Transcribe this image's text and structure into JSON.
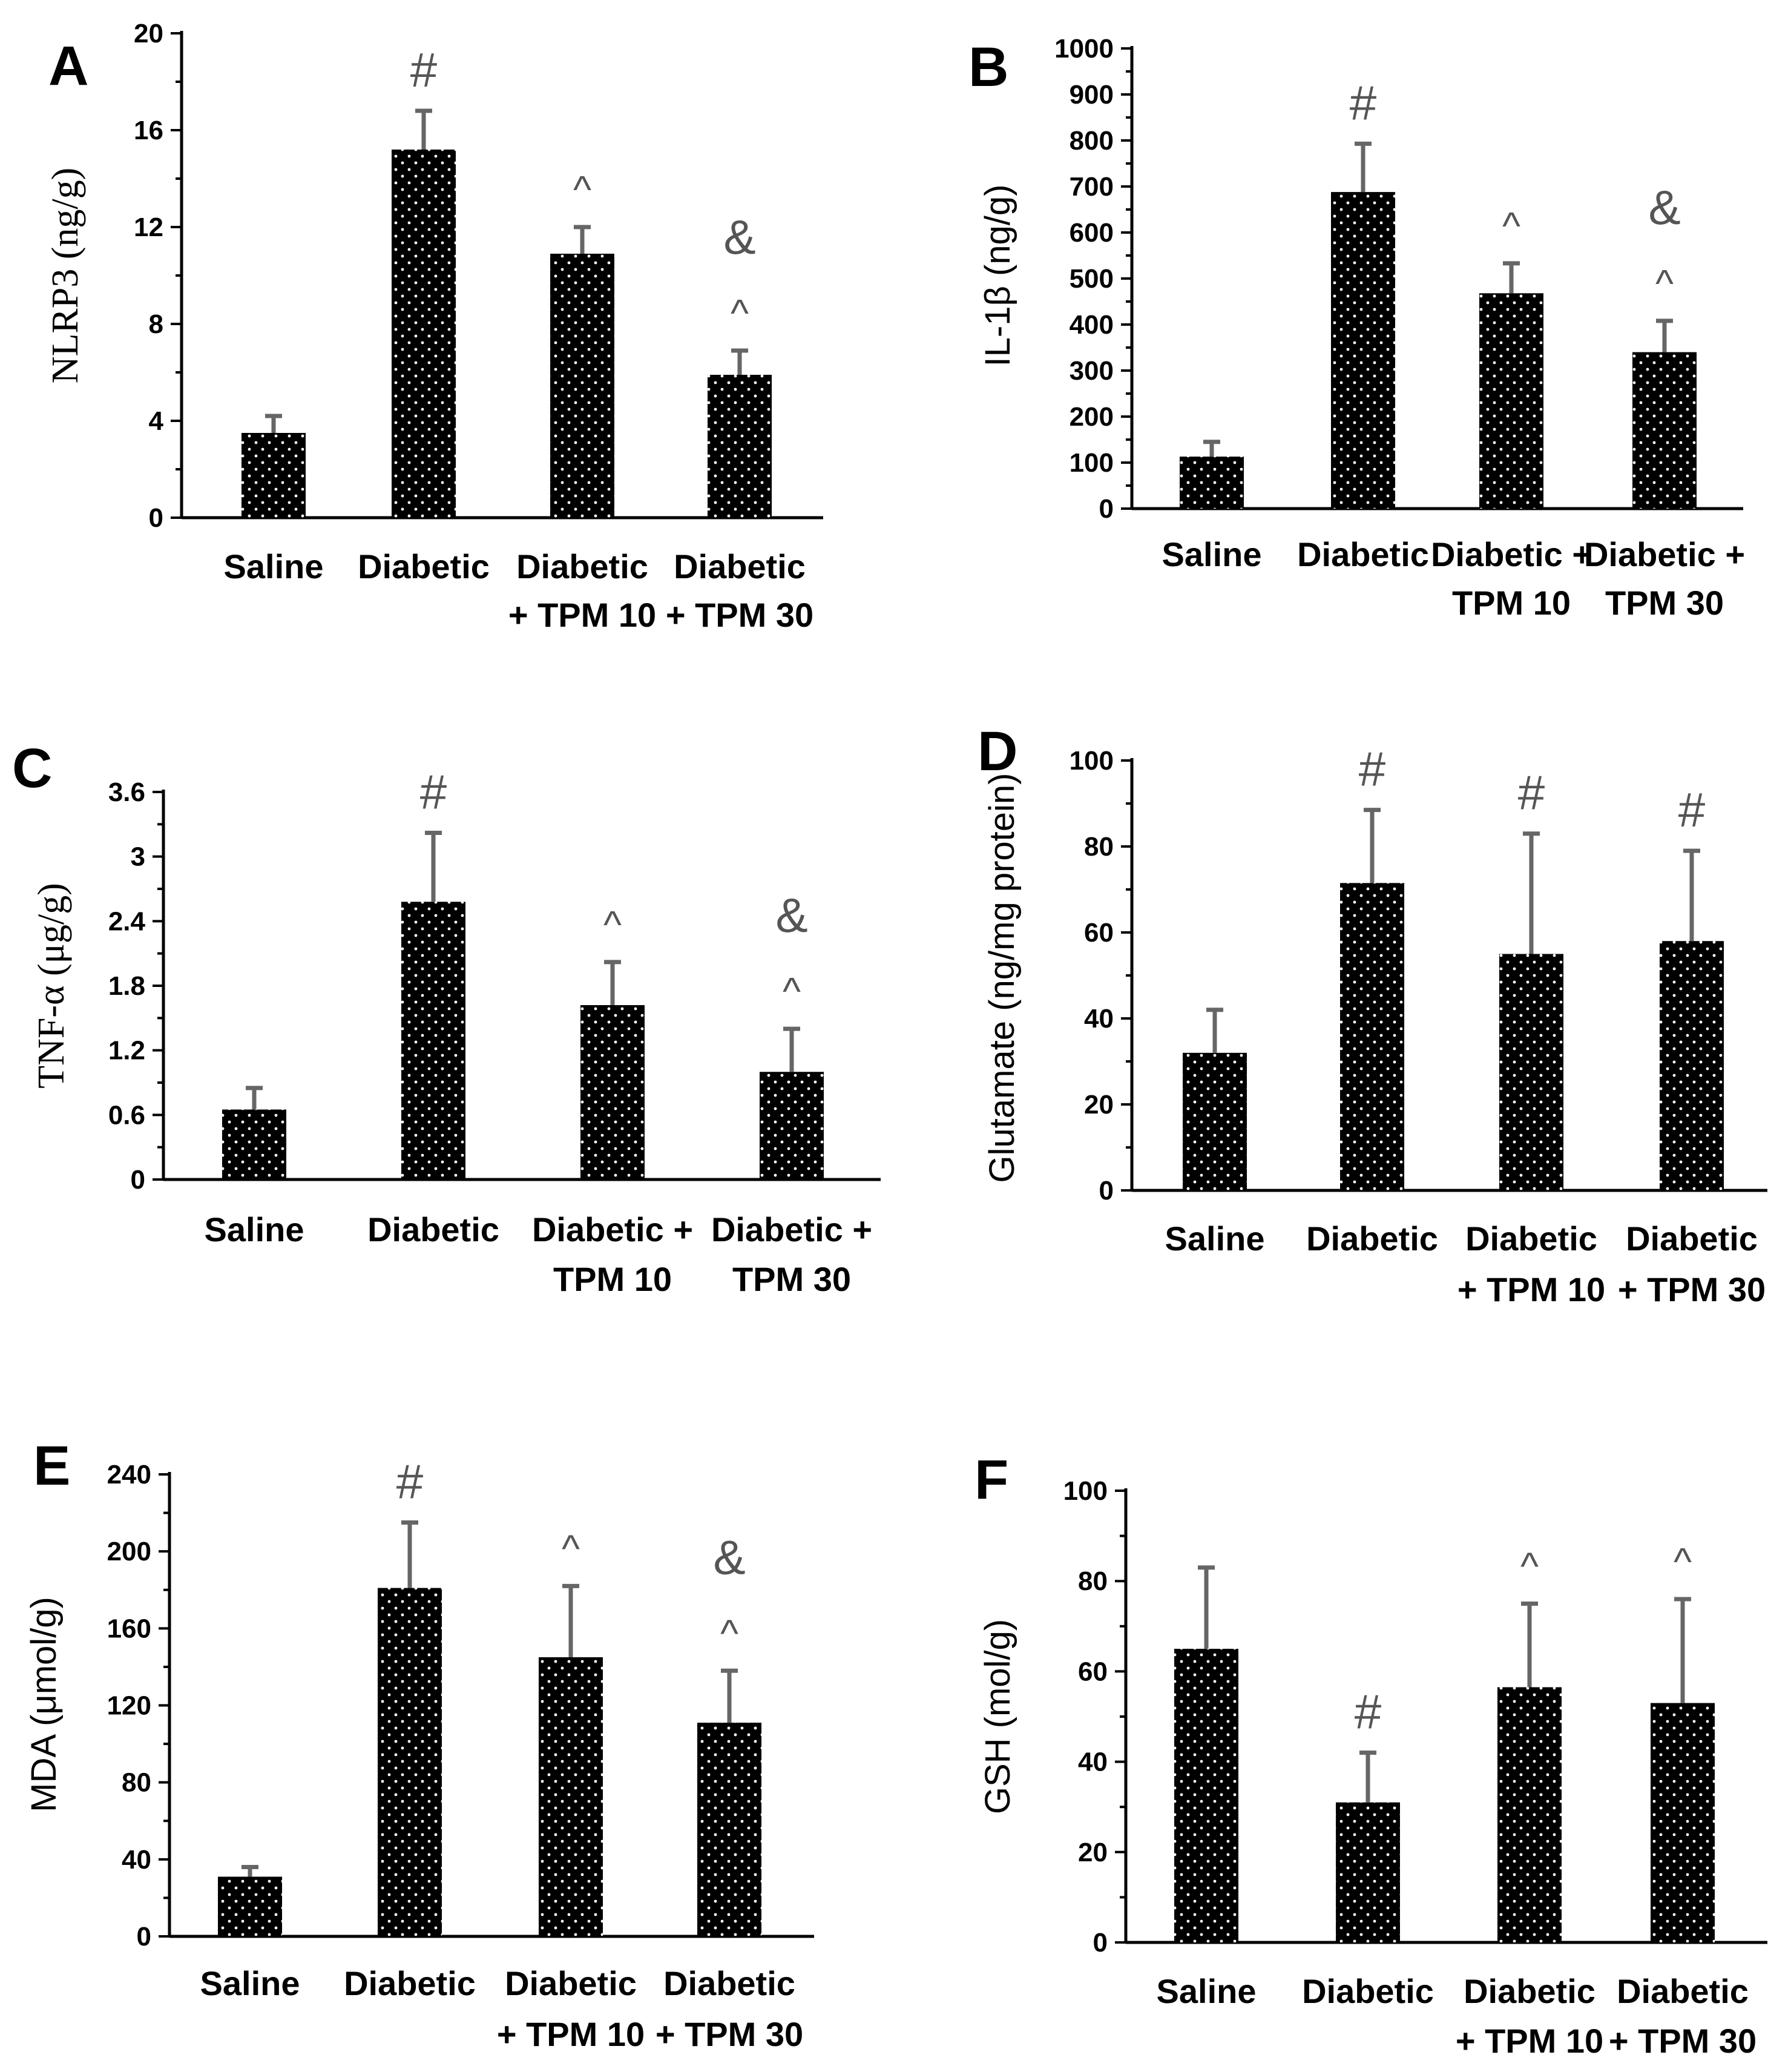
{
  "chart_data": [
    {
      "type": "bar",
      "panel": "A",
      "ylabel": "NLRP3 (ng/g)",
      "ylim": [
        0,
        20
      ],
      "yticks": [
        "0",
        "4",
        "8",
        "12",
        "16",
        "20"
      ],
      "categories": [
        [
          "Saline"
        ],
        [
          "Diabetic"
        ],
        [
          "Diabetic",
          "+ TPM 10"
        ],
        [
          "Diabetic",
          "+ TPM 30"
        ]
      ],
      "values": [
        3.5,
        15.2,
        10.9,
        5.9
      ],
      "errors": [
        0.7,
        1.6,
        1.1,
        1.0
      ],
      "annotations": [
        [],
        [
          "#"
        ],
        [
          "^"
        ],
        [
          "&",
          "^"
        ]
      ]
    },
    {
      "type": "bar",
      "panel": "B",
      "ylabel": "IL-1β (ng/g)",
      "ylim": [
        0,
        1000
      ],
      "yticks": [
        "0",
        "100",
        "200",
        "300",
        "400",
        "500",
        "600",
        "700",
        "800",
        "900",
        "1000"
      ],
      "categories": [
        [
          "Saline"
        ],
        [
          "Diabetic"
        ],
        [
          "Diabetic +",
          "TPM 10"
        ],
        [
          "Diabetic +",
          "TPM 30"
        ]
      ],
      "values": [
        113,
        688,
        468,
        340
      ],
      "errors": [
        32,
        105,
        65,
        68
      ],
      "annotations": [
        [],
        [
          "#"
        ],
        [
          "^"
        ],
        [
          "&",
          "^"
        ]
      ]
    },
    {
      "type": "bar",
      "panel": "C",
      "ylabel": "TNF-α (μg/g)",
      "ylim": [
        0,
        3.6
      ],
      "yticks": [
        "0",
        "0.6",
        "1.2",
        "1.8",
        "2.4",
        "3",
        "3.6"
      ],
      "categories": [
        [
          "Saline"
        ],
        [
          "Diabetic"
        ],
        [
          "Diabetic +",
          "TPM 10"
        ],
        [
          "Diabetic +",
          "TPM 30"
        ]
      ],
      "values": [
        0.65,
        2.58,
        1.62,
        1.0
      ],
      "errors": [
        0.2,
        0.64,
        0.4,
        0.4
      ],
      "annotations": [
        [],
        [
          "#"
        ],
        [
          "^"
        ],
        [
          "&",
          "^"
        ]
      ]
    },
    {
      "type": "bar",
      "panel": "D",
      "ylabel": "Glutamate (ng/mg protein)",
      "ylim": [
        0,
        100
      ],
      "yticks": [
        "0",
        "20",
        "40",
        "60",
        "80",
        "100"
      ],
      "categories": [
        [
          "Saline"
        ],
        [
          "Diabetic"
        ],
        [
          "Diabetic",
          "+ TPM 10"
        ],
        [
          "Diabetic",
          "+ TPM 30"
        ]
      ],
      "values": [
        32,
        71.5,
        55,
        58
      ],
      "errors": [
        10,
        17,
        28,
        21
      ],
      "annotations": [
        [],
        [
          "#"
        ],
        [
          "#"
        ],
        [
          "#"
        ]
      ]
    },
    {
      "type": "bar",
      "panel": "E",
      "ylabel": "MDA (μmol/g)",
      "ylim": [
        0,
        240
      ],
      "yticks": [
        "0",
        "40",
        "80",
        "120",
        "160",
        "200",
        "240"
      ],
      "categories": [
        [
          "Saline"
        ],
        [
          "Diabetic"
        ],
        [
          "Diabetic",
          "+ TPM 10"
        ],
        [
          "Diabetic",
          "+ TPM 30"
        ]
      ],
      "values": [
        31,
        181,
        145,
        111
      ],
      "errors": [
        5,
        34,
        37,
        27
      ],
      "annotations": [
        [],
        [
          "#"
        ],
        [
          "^"
        ],
        [
          "&",
          "^"
        ]
      ]
    },
    {
      "type": "bar",
      "panel": "F",
      "ylabel": "GSH (mol/g)",
      "ylim": [
        0,
        100
      ],
      "yticks": [
        "0",
        "20",
        "40",
        "60",
        "80",
        "100"
      ],
      "categories": [
        [
          "Saline"
        ],
        [
          "Diabetic"
        ],
        [
          "Diabetic",
          "+ TPM 10"
        ],
        [
          "Diabetic",
          "+ TPM 30"
        ]
      ],
      "values": [
        65,
        31,
        56.5,
        53
      ],
      "errors": [
        18,
        11,
        18.5,
        23
      ],
      "annotations": [
        [],
        [
          "#"
        ],
        [
          "^"
        ],
        [
          "^"
        ]
      ]
    }
  ]
}
